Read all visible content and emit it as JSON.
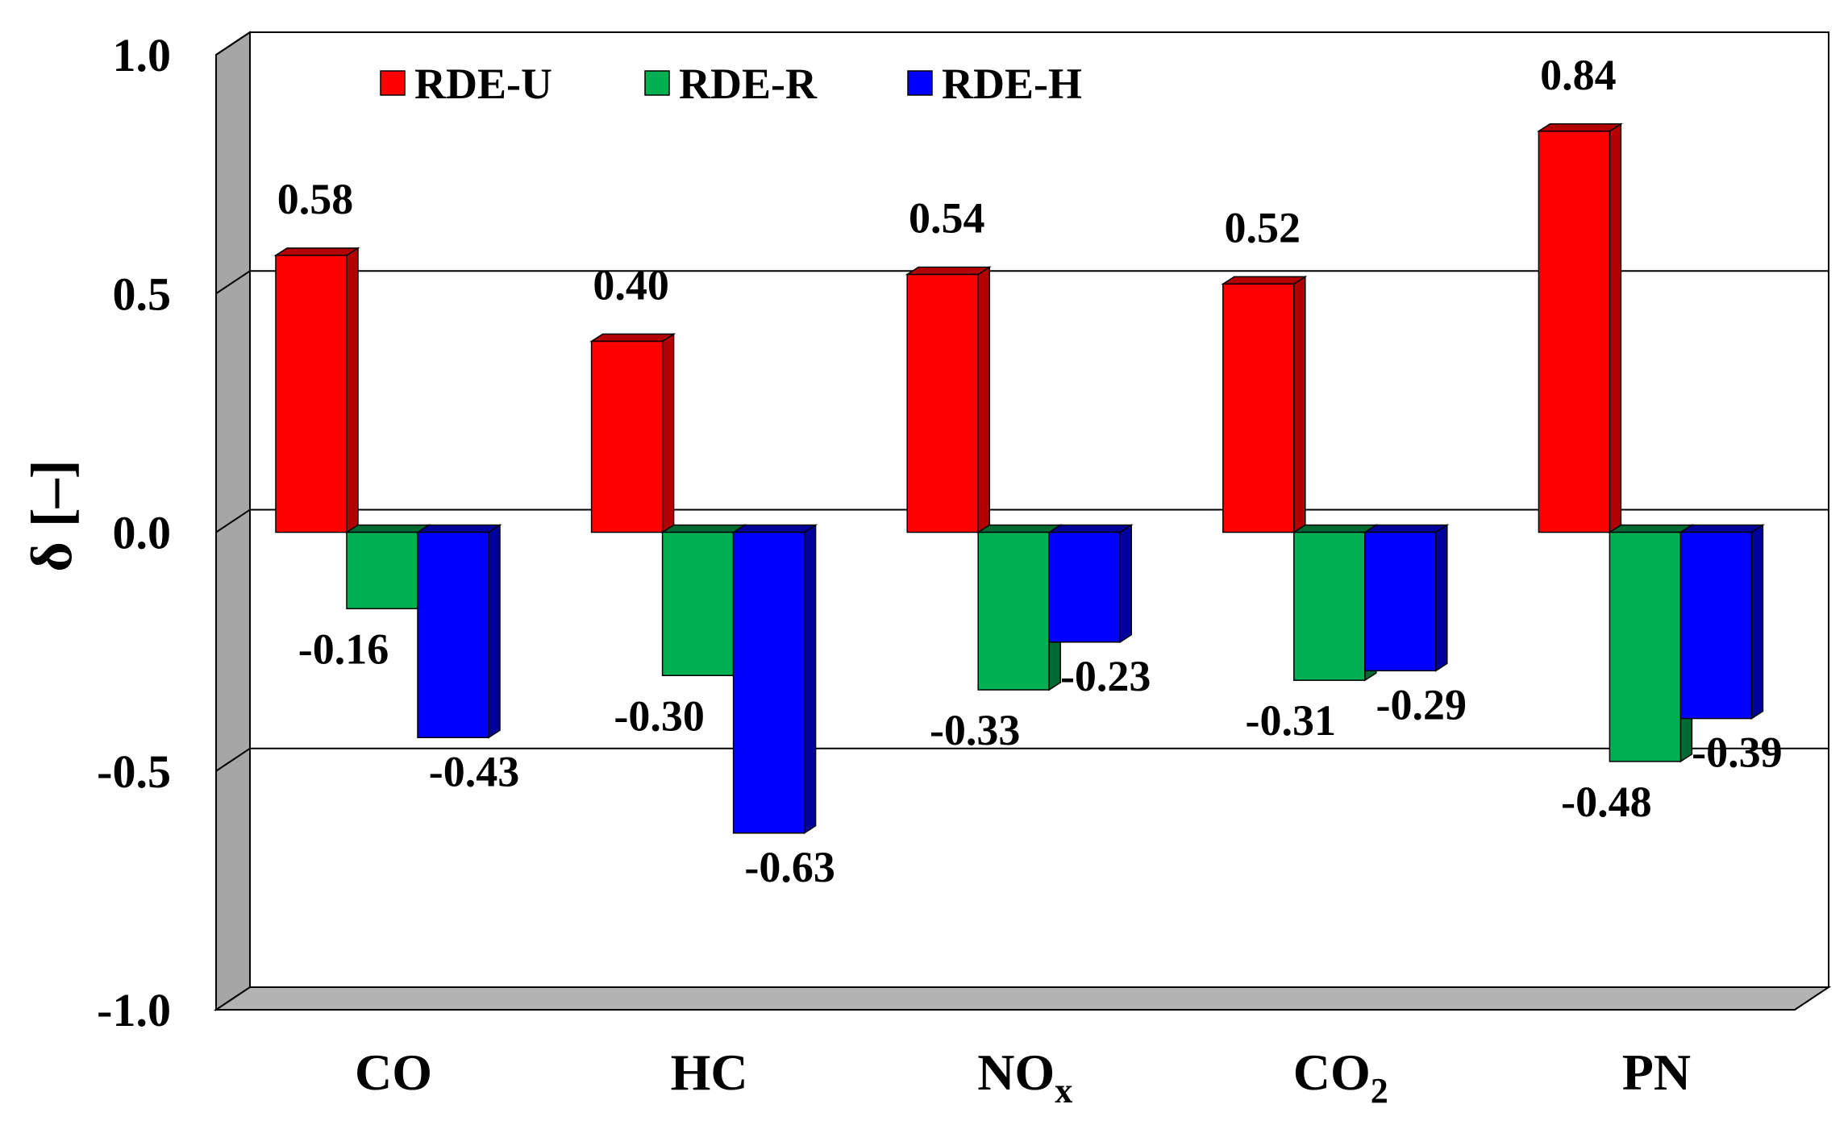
{
  "chart_data": {
    "type": "bar",
    "title": "",
    "xlabel": "",
    "ylabel": "δ [–]",
    "ylim": [
      -1.0,
      1.0
    ],
    "yticks": [
      "1.0",
      "0.5",
      "0.0",
      "-0.5",
      "-1.0"
    ],
    "ytick_values": [
      1.0,
      0.5,
      0.0,
      -0.5,
      -1.0
    ],
    "grid": true,
    "legend_position": "top-left",
    "categories": [
      {
        "main": "CO",
        "sub": ""
      },
      {
        "main": "HC",
        "sub": ""
      },
      {
        "main": "NO",
        "sub": "x"
      },
      {
        "main": "CO",
        "sub": "2"
      },
      {
        "main": "PN",
        "sub": ""
      }
    ],
    "series": [
      {
        "name": "RDE-U",
        "color": "#ff0000",
        "side_color": "#b30000",
        "values": [
          0.58,
          0.4,
          0.54,
          0.52,
          0.84
        ],
        "labels": [
          "0.58",
          "0.40",
          "0.54",
          "0.52",
          "0.84"
        ]
      },
      {
        "name": "RDE-R",
        "color": "#00b050",
        "side_color": "#006b30",
        "values": [
          -0.16,
          -0.3,
          -0.33,
          -0.31,
          -0.48
        ],
        "labels": [
          "-0.16",
          "-0.30",
          "-0.33",
          "-0.31",
          "-0.48"
        ]
      },
      {
        "name": "RDE-H",
        "color": "#0000ff",
        "side_color": "#00009c",
        "values": [
          -0.43,
          -0.63,
          -0.23,
          -0.29,
          -0.39
        ],
        "labels": [
          "-0.43",
          "-0.63",
          "-0.23",
          "-0.29",
          "-0.39"
        ]
      }
    ]
  }
}
